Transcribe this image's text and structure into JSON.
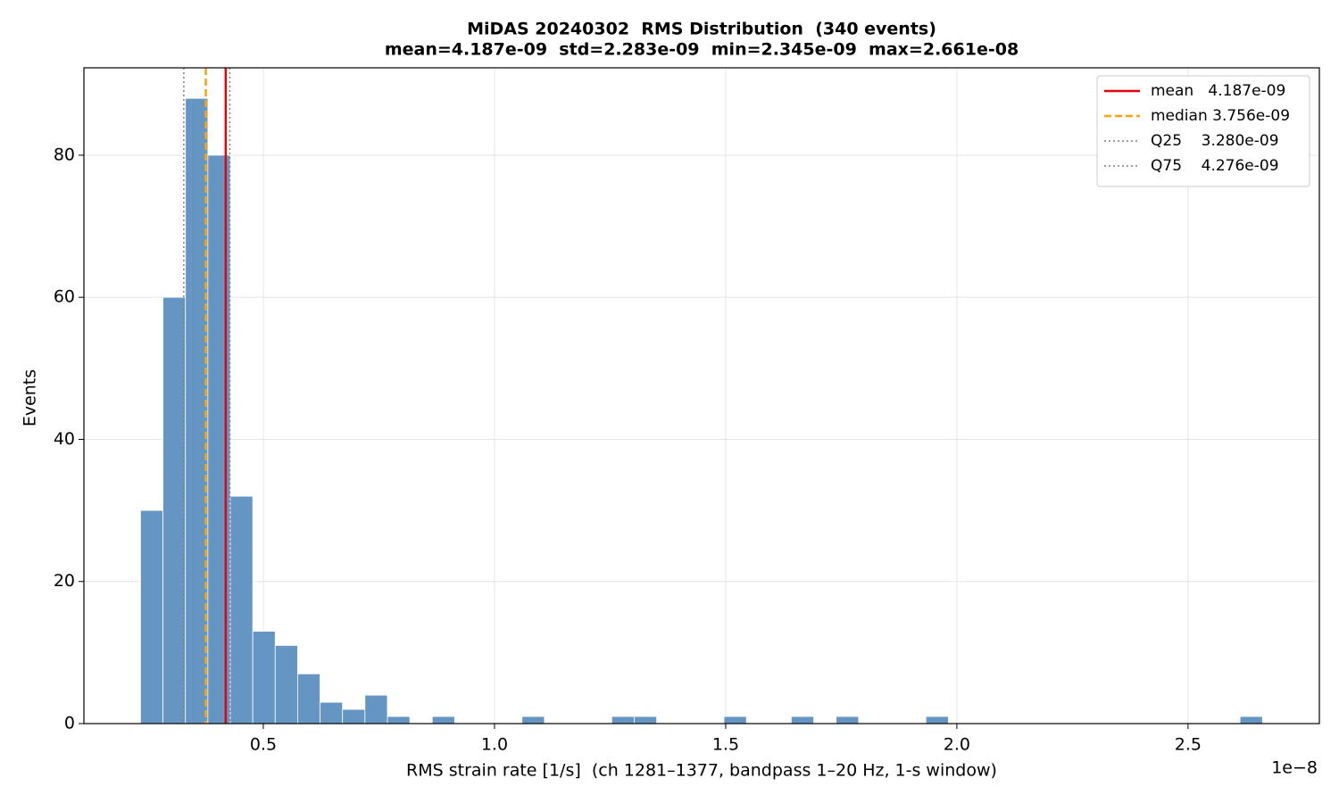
{
  "chart_data": {
    "type": "histogram",
    "title": "MiDAS 20240302  RMS Distribution  (340 events)",
    "subtitle": "mean=4.187e-09  std=2.283e-09  min=2.345e-09  max=2.661e-08",
    "x_label": "RMS strain rate [1/s]  (ch 1281–1377, bandpass 1–20 Hz, 1-s window)",
    "x_offset_label": "1e−8",
    "y_label": "Events",
    "color": "#6495c3",
    "bins": [
      0.2345,
      0.283,
      0.3316,
      0.3801,
      0.4286,
      0.4772,
      0.5257,
      0.5742,
      0.6227,
      0.6713,
      0.7198,
      0.7683,
      0.8169,
      0.8654,
      0.9139,
      0.9625,
      1.011,
      1.0595,
      1.108,
      1.1566,
      1.2051,
      1.2536,
      1.3022,
      1.3507,
      1.3992,
      1.4478,
      1.4963,
      1.5448,
      1.5933,
      1.6419,
      1.6904,
      1.7389,
      1.7875,
      1.836,
      1.8845,
      1.9331,
      1.9816,
      2.0301,
      2.0786,
      2.1272,
      2.1757,
      2.2242,
      2.2728,
      2.3213,
      2.3698,
      2.4184,
      2.4669,
      2.5154,
      2.5639,
      2.6125,
      2.661
    ],
    "values": [
      30,
      60,
      88,
      80,
      32,
      13,
      11,
      7,
      3,
      2,
      4,
      1,
      0,
      1,
      0,
      0,
      0,
      1,
      0,
      0,
      0,
      1,
      1,
      0,
      0,
      0,
      1,
      0,
      0,
      1,
      0,
      1,
      0,
      0,
      0,
      1,
      0,
      0,
      0,
      0,
      0,
      0,
      0,
      0,
      0,
      0,
      0,
      0,
      0,
      1
    ],
    "vlines": [
      {
        "name": "mean   4.187e-09",
        "value": 0.4187,
        "color": "#e8000b",
        "style": "solid"
      },
      {
        "name": "median 3.756e-09",
        "value": 0.3756,
        "color": "#ffa500",
        "style": "dashed"
      },
      {
        "name": "Q25    3.280e-09",
        "value": 0.328,
        "color": "#808080",
        "style": "dotted"
      },
      {
        "name": "Q75    4.276e-09",
        "value": 0.4276,
        "color": "#808080",
        "style": "dotted"
      }
    ],
    "xlim": [
      0.112,
      2.784
    ],
    "ylim": [
      0,
      92.3
    ],
    "xticks": [
      0.5,
      {
        "value": 1,
        "label": "1.0"
      },
      1.5,
      {
        "value": 2,
        "label": "2.0"
      },
      2.5
    ],
    "yticks": [
      0,
      20,
      40,
      60,
      80
    ],
    "grid": true,
    "legend": "upper right"
  }
}
